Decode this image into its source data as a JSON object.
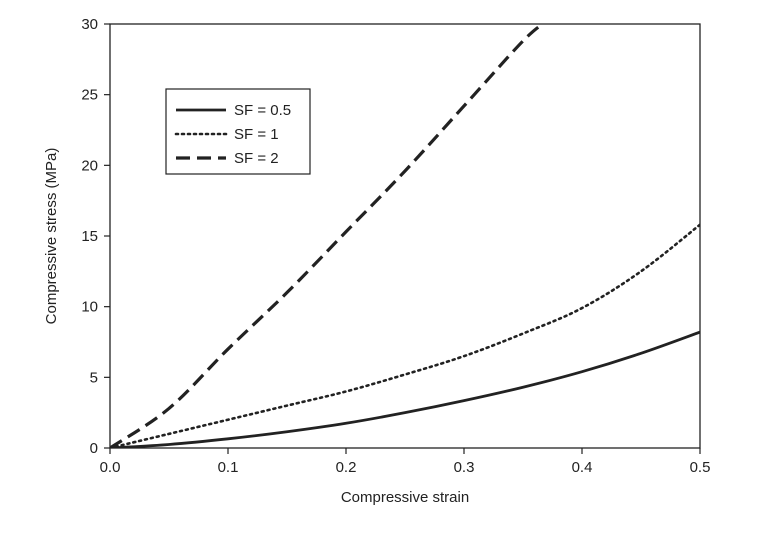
{
  "chart_data": {
    "type": "line",
    "title": "",
    "xlabel": "Compressive strain",
    "ylabel": "Compressive stress (MPa)",
    "xlim": [
      0,
      0.5
    ],
    "ylim": [
      0,
      30
    ],
    "xticks": [
      0.0,
      0.1,
      0.2,
      0.3,
      0.4,
      0.5
    ],
    "xtick_labels": [
      "0.0",
      "0.1",
      "0.2",
      "0.3",
      "0.4",
      "0.5"
    ],
    "yticks": [
      0,
      5,
      10,
      15,
      20,
      25,
      30
    ],
    "ytick_labels": [
      "0",
      "5",
      "10",
      "15",
      "20",
      "25",
      "30"
    ],
    "grid": false,
    "legend_position": "upper-left",
    "series": [
      {
        "name": "SF = 0.5",
        "style": "solid",
        "color": "#222222",
        "x": [
          0,
          0.05,
          0.1,
          0.15,
          0.2,
          0.25,
          0.3,
          0.35,
          0.4,
          0.45,
          0.5
        ],
        "y": [
          0,
          0.25,
          0.65,
          1.15,
          1.75,
          2.5,
          3.35,
          4.3,
          5.4,
          6.7,
          8.2
        ]
      },
      {
        "name": "SF = 1",
        "style": "dotted",
        "color": "#222222",
        "x": [
          0,
          0.05,
          0.1,
          0.15,
          0.2,
          0.25,
          0.3,
          0.35,
          0.4,
          0.45,
          0.5
        ],
        "y": [
          0,
          1.0,
          2.0,
          3.0,
          4.0,
          5.2,
          6.5,
          8.1,
          9.9,
          12.5,
          15.8
        ]
      },
      {
        "name": "SF = 2",
        "style": "dashed",
        "color": "#222222",
        "x": [
          0,
          0.05,
          0.1,
          0.15,
          0.2,
          0.25,
          0.3,
          0.35,
          0.37
        ],
        "y": [
          0,
          2.8,
          7.0,
          11.0,
          15.3,
          19.6,
          24.2,
          28.8,
          30.2
        ]
      }
    ]
  }
}
